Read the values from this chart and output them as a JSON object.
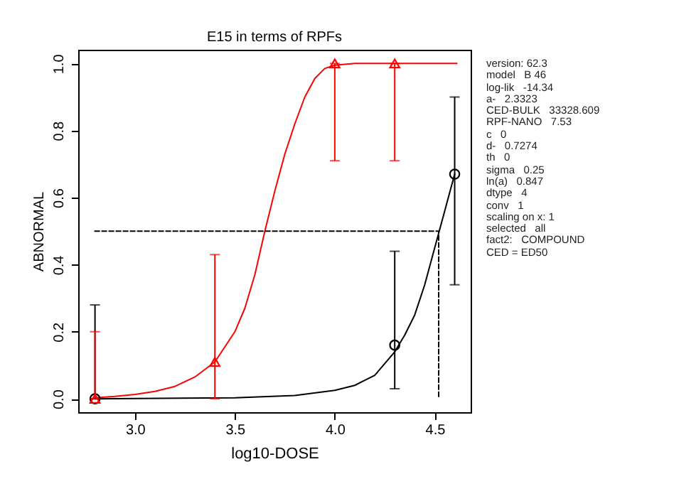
{
  "chart_data": {
    "type": "scatter",
    "title": "E15 in terms of RPFs",
    "xlabel": "log10-DOSE",
    "ylabel": "ABNORMAL",
    "xlim": [
      2.716,
      4.68
    ],
    "ylim": [
      -0.04,
      1.041
    ],
    "xticks": [
      {
        "value": 3,
        "label": "3.0"
      },
      {
        "value": 3.5,
        "label": "3.5"
      },
      {
        "value": 4,
        "label": "4.0"
      },
      {
        "value": 4.5,
        "label": "4.5"
      }
    ],
    "yticks": [
      {
        "value": 0,
        "label": "0.0"
      },
      {
        "value": 0.2,
        "label": "0.2"
      },
      {
        "value": 0.4,
        "label": "0.4"
      },
      {
        "value": 0.6,
        "label": "0.6"
      },
      {
        "value": 0.8,
        "label": "0.8"
      },
      {
        "value": 1,
        "label": "1.0"
      }
    ],
    "series": [
      {
        "type": "line",
        "color": "#ff0000",
        "marker": "none",
        "line_style": "solid",
        "x": [
          2.8,
          2.9,
          3.0,
          3.1,
          3.2,
          3.3,
          3.4,
          3.5,
          3.55,
          3.6,
          3.65,
          3.7,
          3.75,
          3.8,
          3.85,
          3.9,
          3.95,
          4.0,
          4.1,
          4.3,
          4.61
        ],
        "values": [
          0.003,
          0.007,
          0.013,
          0.022,
          0.037,
          0.065,
          0.11,
          0.2,
          0.27,
          0.37,
          0.5,
          0.62,
          0.73,
          0.82,
          0.9,
          0.955,
          0.985,
          0.995,
          1.0,
          1.0,
          1.0
        ]
      },
      {
        "type": "line",
        "color": "#000000",
        "marker": "none",
        "line_style": "solid",
        "x": [
          2.8,
          3.0,
          3.5,
          3.8,
          4.0,
          4.1,
          4.2,
          4.3,
          4.35,
          4.4,
          4.45,
          4.5,
          4.55,
          4.6
        ],
        "values": [
          0,
          0.001,
          0.003,
          0.01,
          0.025,
          0.04,
          0.07,
          0.14,
          0.19,
          0.25,
          0.34,
          0.45,
          0.56,
          0.67
        ]
      },
      {
        "type": "line",
        "color": "#000000",
        "marker": "none",
        "line_style": "dashed",
        "x": [
          2.8,
          4.52,
          4.52
        ],
        "values": [
          0.5,
          0.5,
          0
        ]
      },
      {
        "color": "#000000",
        "marker": "circle",
        "x": [
          2.8,
          4.3,
          4.6
        ],
        "values": [
          0,
          0.16,
          0.67
        ],
        "errors": [
          [
            0,
            0.28
          ],
          [
            0.03,
            0.44
          ],
          [
            0.34,
            0.9
          ]
        ]
      },
      {
        "color": "#ff0000",
        "marker": "triangle",
        "x": [
          2.8,
          3.4,
          4.0,
          4.3
        ],
        "values": [
          0,
          0.11,
          1.0,
          1.0
        ],
        "errors": [
          [
            0,
            0.2
          ],
          [
            0,
            0.43
          ],
          [
            0.71,
            1.0
          ],
          [
            0.71,
            1.0
          ]
        ]
      }
    ],
    "annotations": [
      "version: 62.3",
      "model   B 46",
      "log-lik   -14.34",
      "a-   2.3323",
      "CED-BULK   33328.609",
      "RPF-NANO   7.53",
      "c   0",
      "d-   0.7274",
      "th   0",
      "sigma   0.25",
      "ln(a)   0.847",
      "dtype   4",
      "conv   1",
      "scaling on x: 1",
      "selected   all",
      "fact2:   COMPOUND",
      "CED = ED50"
    ]
  }
}
